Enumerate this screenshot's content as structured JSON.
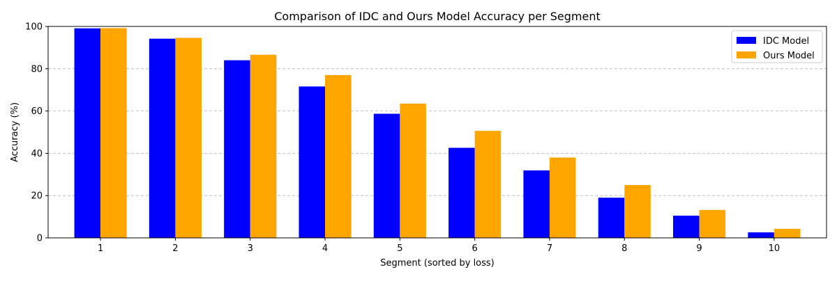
{
  "chart_data": {
    "type": "bar",
    "title": "Comparison of IDC and Ours Model Accuracy per Segment",
    "xlabel": "Segment (sorted by loss)",
    "ylabel": "Accuracy (%)",
    "categories": [
      "1",
      "2",
      "3",
      "4",
      "5",
      "6",
      "7",
      "8",
      "9",
      "10"
    ],
    "ylim": [
      0,
      100
    ],
    "yticks": [
      0,
      20,
      40,
      60,
      80,
      100
    ],
    "grid": {
      "axis": "y",
      "style": "dashed"
    },
    "legend_position": "top-right",
    "series": [
      {
        "name": "IDC Model",
        "color": "#0000ff",
        "values": [
          99.1,
          94.2,
          84.0,
          71.6,
          58.7,
          42.6,
          31.9,
          19.0,
          10.5,
          2.6
        ]
      },
      {
        "name": "Ours Model",
        "color": "#ffa500",
        "values": [
          99.2,
          94.6,
          86.6,
          77.0,
          63.5,
          50.6,
          38.0,
          25.0,
          13.2,
          4.3
        ]
      }
    ]
  }
}
